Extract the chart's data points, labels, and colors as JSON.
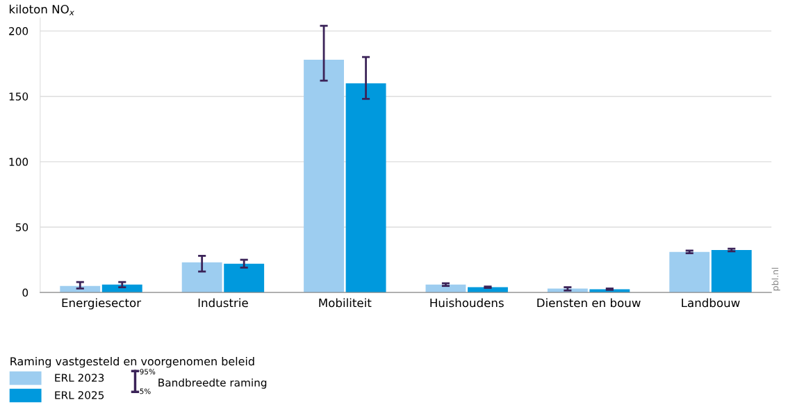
{
  "chart_data": {
    "type": "bar",
    "ylabel": "kiloton NO$_{x}$",
    "legend_title": "Raming vastgesteld en voorgenomen beleid",
    "categories": [
      "Energiesector",
      "Industrie",
      "Mobiliteit",
      "Huishoudens",
      "Diensten en bouw",
      "Landbouw"
    ],
    "series": [
      {
        "name": "ERL 2023",
        "color": "#9dcdf0",
        "values": [
          5,
          23,
          178,
          6,
          3,
          31
        ],
        "errors": [
          [
            3,
            8
          ],
          [
            16,
            28
          ],
          [
            162,
            204
          ],
          [
            5,
            7
          ],
          [
            1.5,
            4
          ],
          [
            30,
            32
          ]
        ]
      },
      {
        "name": "ERL 2025",
        "color": "#0099dd",
        "values": [
          6,
          22,
          160,
          4,
          2.5,
          32.5
        ],
        "errors": [
          [
            4,
            8
          ],
          [
            19,
            25
          ],
          [
            148,
            180
          ],
          [
            3.5,
            4.5
          ],
          [
            2,
            3
          ],
          [
            31.5,
            33.5
          ]
        ]
      }
    ],
    "ylim": [
      0,
      210
    ],
    "yticks": [
      0,
      50,
      100,
      150,
      200
    ],
    "grid": "y",
    "legend": "bottom left",
    "annotations": [
      "Bandbreedte raming",
      "95%",
      "5%",
      "pbl.nl"
    ]
  }
}
